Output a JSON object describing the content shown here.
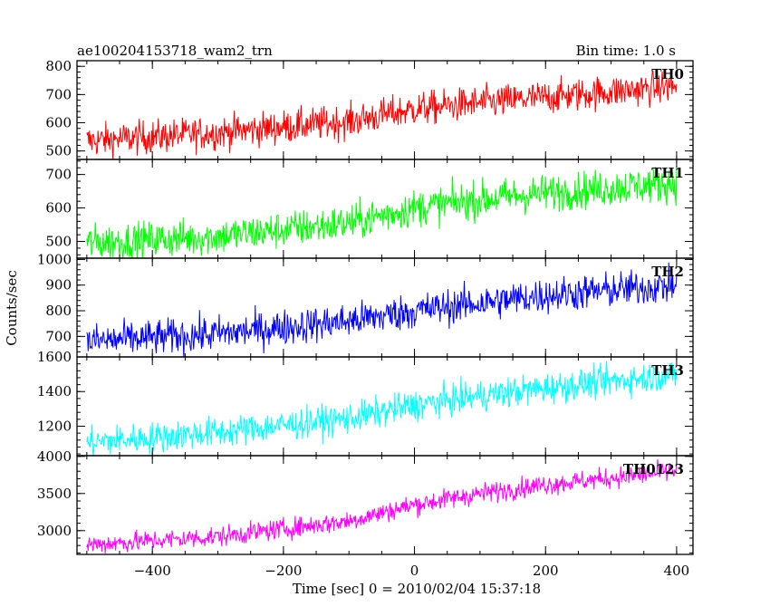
{
  "header": {
    "title": "ae100204153718_wam2_trn",
    "bin_time": "Bin time: 1.0 s"
  },
  "axes": {
    "xlabel": "Time [sec] 0 = 2010/02/04 15:37:18",
    "ylabel": "Counts/sec"
  },
  "chart_data": {
    "type": "line",
    "title": "ae100204153718_wam2_trn",
    "subtitle": "Bin time: 1.0 s",
    "xlabel": "Time [sec] 0 = 2010/02/04 15:37:18",
    "ylabel": "Counts/sec",
    "xlim": [
      -515,
      425
    ],
    "x_ticks": [
      -400,
      -200,
      0,
      200,
      400
    ],
    "x_start": -500,
    "x_end": 400,
    "x_step": 1,
    "grid": false,
    "panels": [
      {
        "name": "TH0",
        "color": "#ff0000",
        "ylim": [
          470,
          820
        ],
        "y_ticks": [
          500,
          600,
          700,
          800
        ],
        "trend": [
          [
            -500,
            535
          ],
          [
            -300,
            565
          ],
          [
            -100,
            605
          ],
          [
            0,
            648
          ],
          [
            100,
            670
          ],
          [
            200,
            690
          ],
          [
            400,
            730
          ]
        ],
        "noise": 30
      },
      {
        "name": "TH1",
        "color": "#00ff00",
        "ylim": [
          450,
          745
        ],
        "y_ticks": [
          500,
          600,
          700
        ],
        "trend": [
          [
            -500,
            495
          ],
          [
            -300,
            515
          ],
          [
            -100,
            555
          ],
          [
            0,
            600
          ],
          [
            100,
            625
          ],
          [
            200,
            645
          ],
          [
            400,
            675
          ]
        ],
        "noise": 28
      },
      {
        "name": "TH2",
        "color": "#0000ff",
        "ylim": [
          620,
          1005
        ],
        "y_ticks": [
          700,
          800,
          900,
          1000
        ],
        "trend": [
          [
            -500,
            680
          ],
          [
            -300,
            710
          ],
          [
            -100,
            760
          ],
          [
            0,
            800
          ],
          [
            100,
            830
          ],
          [
            200,
            860
          ],
          [
            400,
            900
          ]
        ],
        "noise": 35
      },
      {
        "name": "TH3",
        "color": "#00ffff",
        "ylim": [
          1030,
          1600
        ],
        "y_ticks": [
          1200,
          1400,
          1600
        ],
        "trend": [
          [
            -500,
            1105
          ],
          [
            -300,
            1165
          ],
          [
            -100,
            1245
          ],
          [
            0,
            1320
          ],
          [
            100,
            1375
          ],
          [
            200,
            1420
          ],
          [
            400,
            1500
          ]
        ],
        "noise": 45
      },
      {
        "name": "TH0123",
        "color": "#ff00ff",
        "ylim": [
          2680,
          4010
        ],
        "y_ticks": [
          3000,
          3500,
          4000
        ],
        "trend": [
          [
            -500,
            2810
          ],
          [
            -300,
            2920
          ],
          [
            -100,
            3130
          ],
          [
            0,
            3350
          ],
          [
            100,
            3500
          ],
          [
            200,
            3620
          ],
          [
            400,
            3800
          ]
        ],
        "noise": 70
      }
    ]
  }
}
